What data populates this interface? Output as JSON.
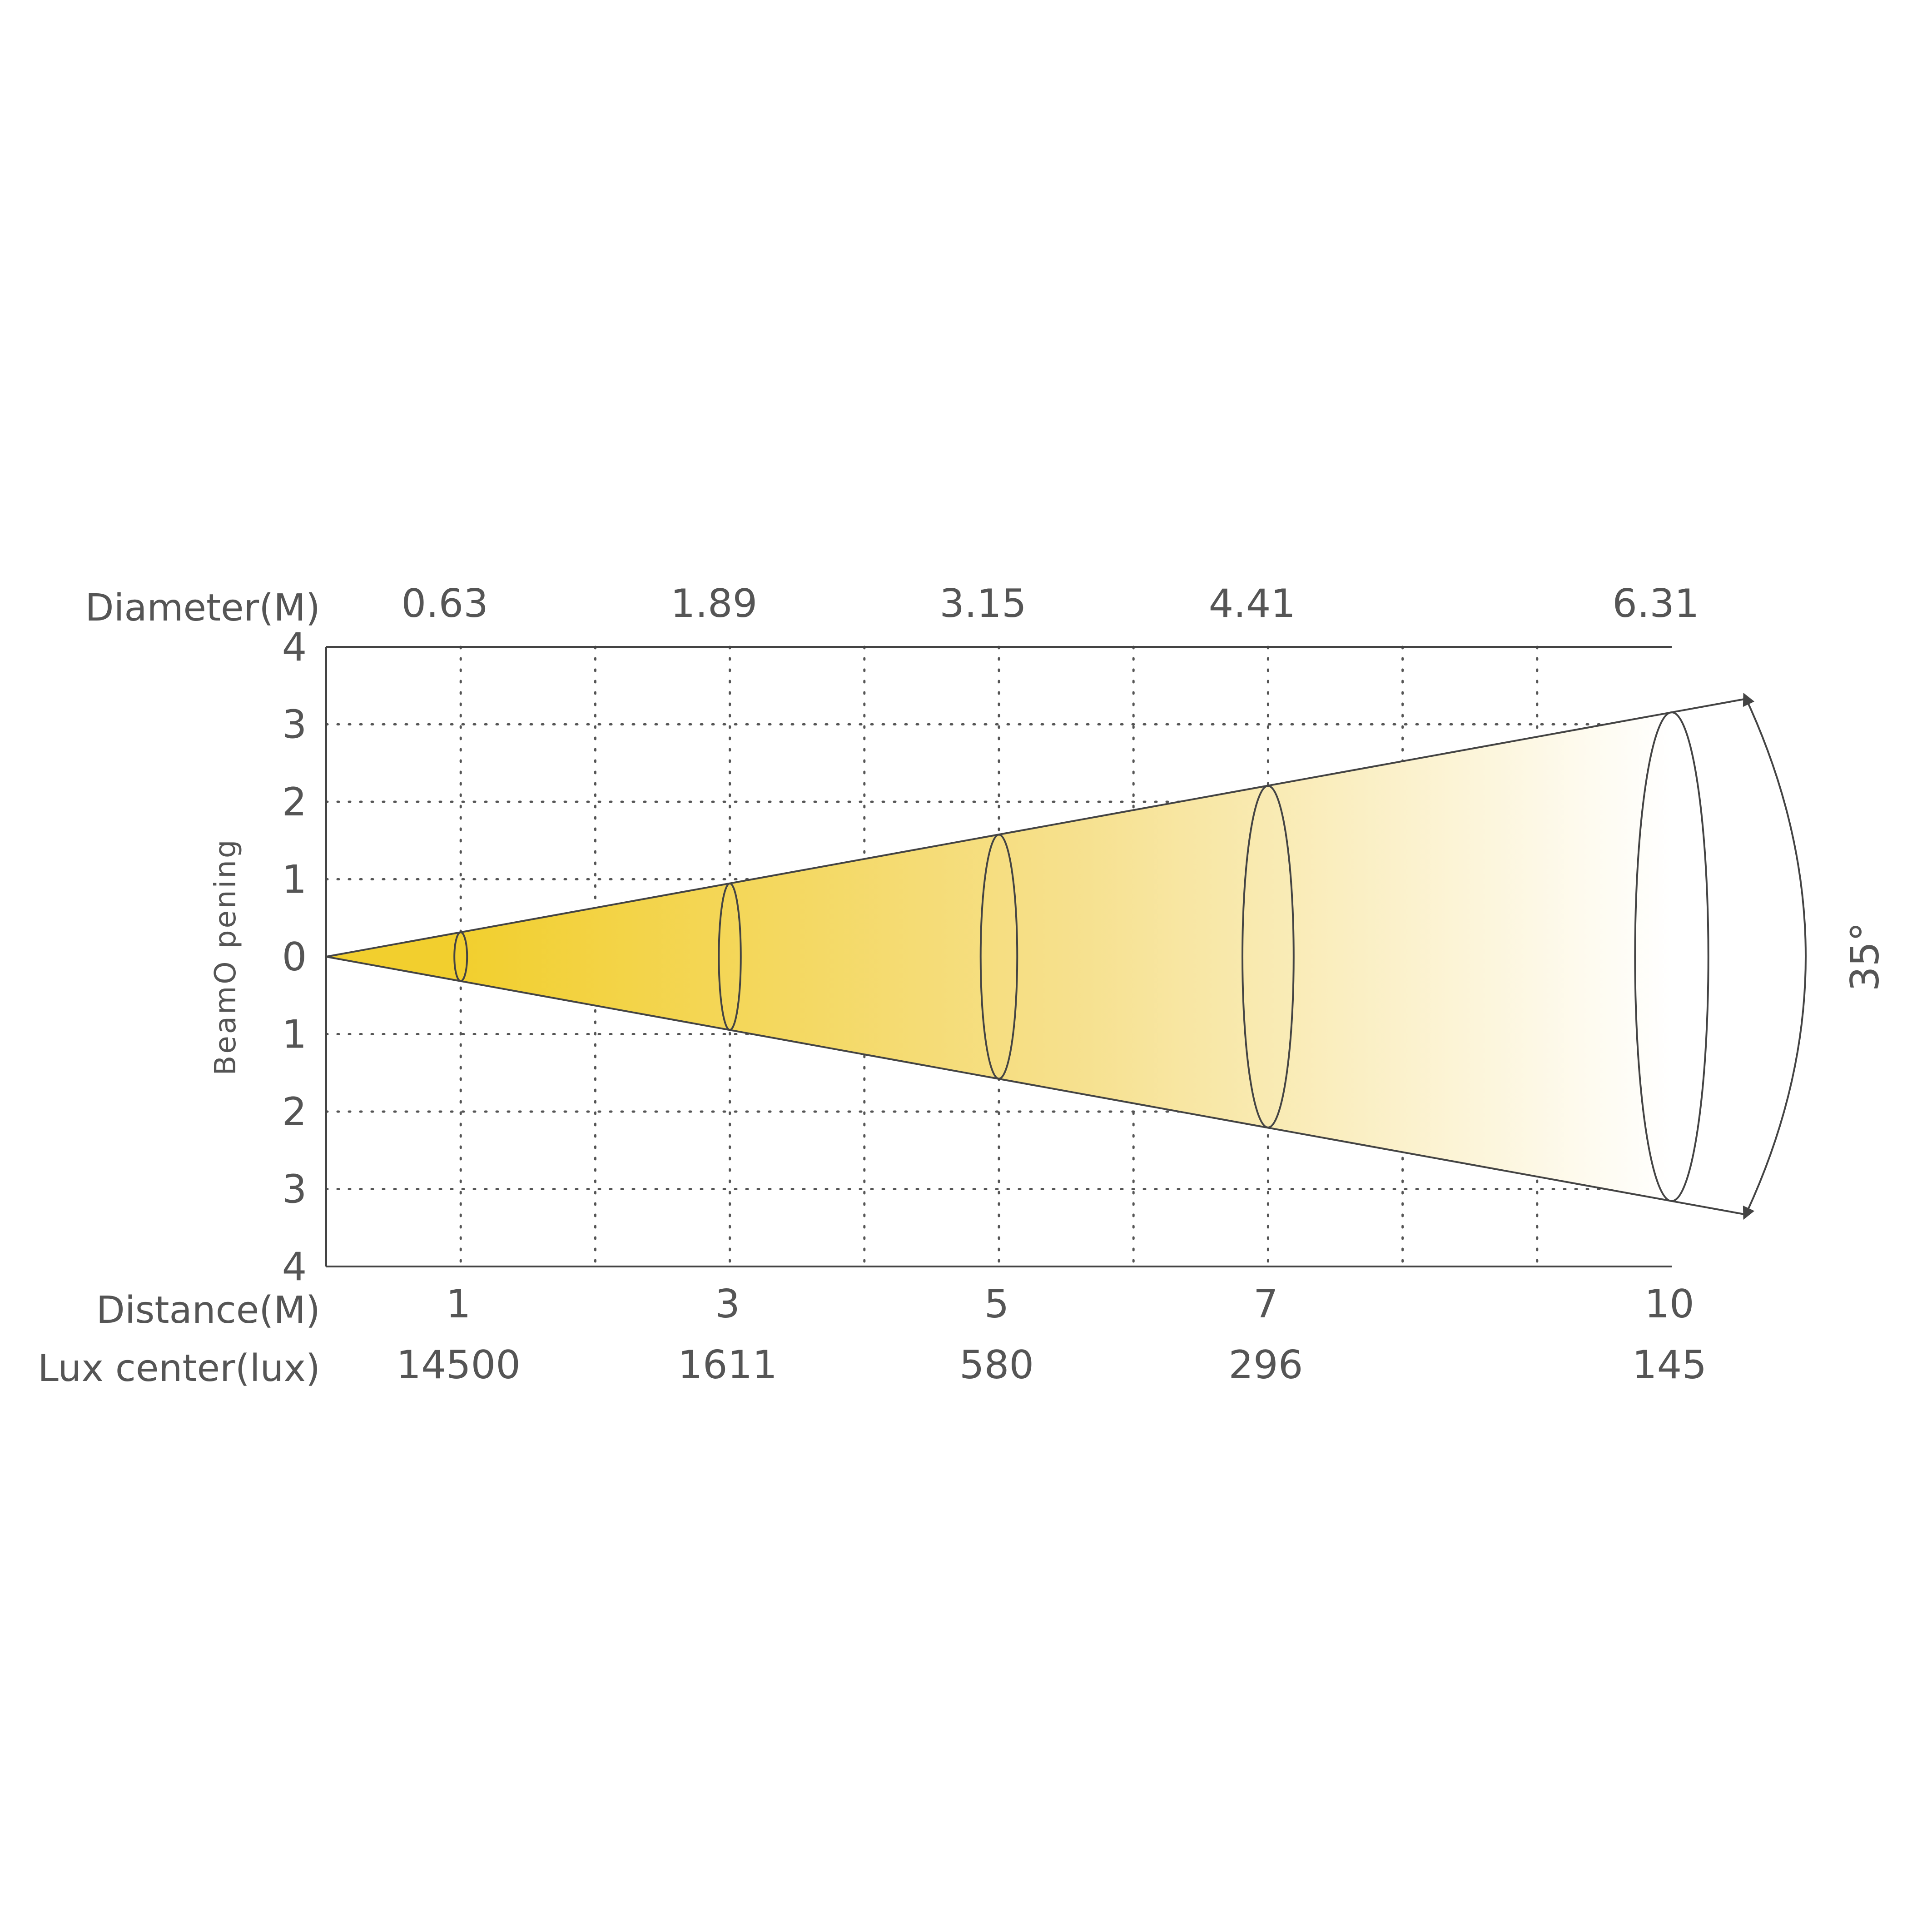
{
  "chart_data": {
    "type": "beam-angle-diagram",
    "beam_angle_label": "35°",
    "ylabel": "BeamO pening",
    "y_ticks": [
      "4",
      "3",
      "2",
      "1",
      "0",
      "1",
      "2",
      "3",
      "4"
    ],
    "y_range": [
      -4,
      4
    ],
    "x_range": [
      0,
      10
    ],
    "grid": "dotted",
    "row_labels": {
      "diameter": "Diameter(M)",
      "distance": "Distance(M)",
      "lux": "Lux center(lux)"
    },
    "points": [
      {
        "distance": 1,
        "distance_label": "1",
        "diameter": 0.63,
        "diameter_label": "0.63",
        "lux": 14500,
        "lux_label": "14500"
      },
      {
        "distance": 3,
        "distance_label": "3",
        "diameter": 1.89,
        "diameter_label": "1.89",
        "lux": 1611,
        "lux_label": "1611"
      },
      {
        "distance": 5,
        "distance_label": "5",
        "diameter": 3.15,
        "diameter_label": "3.15",
        "lux": 580,
        "lux_label": "580"
      },
      {
        "distance": 7,
        "distance_label": "7",
        "diameter": 4.41,
        "diameter_label": "4.41",
        "lux": 296,
        "lux_label": "296"
      },
      {
        "distance": 10,
        "distance_label": "10",
        "diameter": 6.31,
        "diameter_label": "6.31",
        "lux": 145,
        "lux_label": "145"
      }
    ],
    "colors": {
      "beam_near": "#f2cf2e",
      "beam_far": "#ffffff",
      "lines": "#444444",
      "grid": "#555555",
      "text": "#555555"
    }
  }
}
